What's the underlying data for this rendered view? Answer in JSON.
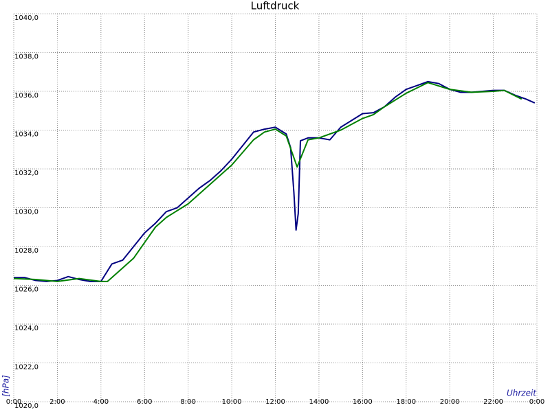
{
  "chart_data": {
    "type": "line",
    "title": "Luftdruck",
    "y_label": "[hPa]",
    "x_label": "Uhrzeit",
    "xlim": [
      0,
      24
    ],
    "ylim": [
      1020,
      1040
    ],
    "xticks": [
      {
        "value": 0,
        "label": "0:00"
      },
      {
        "value": 2,
        "label": "2:00"
      },
      {
        "value": 4,
        "label": "4:00"
      },
      {
        "value": 6,
        "label": "6:00"
      },
      {
        "value": 8,
        "label": "8:00"
      },
      {
        "value": 10,
        "label": "10:00"
      },
      {
        "value": 12,
        "label": "12:00"
      },
      {
        "value": 14,
        "label": "14:00"
      },
      {
        "value": 16,
        "label": "16:00"
      },
      {
        "value": 18,
        "label": "18:00"
      },
      {
        "value": 20,
        "label": "20:00"
      },
      {
        "value": 22,
        "label": "22:00"
      },
      {
        "value": 24,
        "label": "0:00"
      }
    ],
    "yticks": [
      {
        "value": 1020,
        "label": "1020,0"
      },
      {
        "value": 1022,
        "label": "1022,0"
      },
      {
        "value": 1024,
        "label": "1024,0"
      },
      {
        "value": 1026,
        "label": "1026,0"
      },
      {
        "value": 1028,
        "label": "1028,0"
      },
      {
        "value": 1030,
        "label": "1030,0"
      },
      {
        "value": 1032,
        "label": "1032,0"
      },
      {
        "value": 1034,
        "label": "1034,0"
      },
      {
        "value": 1036,
        "label": "1036,0"
      },
      {
        "value": 1038,
        "label": "1038,0"
      },
      {
        "value": 1040,
        "label": "1040,0"
      }
    ],
    "grid": true,
    "series": [
      {
        "color": "#000080",
        "x": [
          0,
          0.5,
          1,
          1.5,
          2,
          2.5,
          3,
          3.5,
          4,
          4.5,
          5,
          5.5,
          6,
          6.5,
          7,
          7.5,
          8,
          8.5,
          9,
          9.5,
          10,
          10.5,
          11,
          11.5,
          12,
          12.5,
          12.7,
          12.85,
          12.95,
          13.05,
          13.15,
          13.5,
          14,
          14.5,
          15,
          15.5,
          16,
          16.5,
          17,
          17.5,
          18,
          18.5,
          19,
          19.5,
          20,
          20.5,
          21,
          21.5,
          22,
          22.5,
          23,
          23.5,
          23.9
        ],
        "values": [
          1026.4,
          1026.4,
          1026.25,
          1026.2,
          1026.25,
          1026.45,
          1026.3,
          1026.2,
          1026.2,
          1027.1,
          1027.3,
          1028.0,
          1028.7,
          1029.2,
          1029.8,
          1030.0,
          1030.5,
          1031.0,
          1031.4,
          1031.9,
          1032.5,
          1033.2,
          1033.9,
          1034.05,
          1034.15,
          1033.8,
          1033.1,
          1030.8,
          1028.85,
          1029.7,
          1033.45,
          1033.6,
          1033.6,
          1033.5,
          1034.15,
          1034.5,
          1034.85,
          1034.9,
          1035.2,
          1035.7,
          1036.1,
          1036.3,
          1036.5,
          1036.4,
          1036.1,
          1035.95,
          1035.95,
          1036.0,
          1036.05,
          1036.05,
          1035.8,
          1035.6,
          1035.4
        ]
      },
      {
        "color": "#008000",
        "x": [
          0,
          1,
          2,
          3,
          4,
          4.3,
          5,
          5.5,
          6,
          6.5,
          7,
          8,
          9,
          10,
          11,
          11.5,
          12,
          12.5,
          13,
          13.5,
          14,
          15,
          16,
          16.5,
          17,
          18,
          19,
          20,
          21,
          22,
          22.5,
          23.3
        ],
        "values": [
          1026.35,
          1026.3,
          1026.2,
          1026.35,
          1026.2,
          1026.2,
          1026.9,
          1027.4,
          1028.2,
          1029.0,
          1029.5,
          1030.2,
          1031.2,
          1032.2,
          1033.5,
          1033.9,
          1034.05,
          1033.7,
          1032.1,
          1033.5,
          1033.6,
          1034.0,
          1034.6,
          1034.8,
          1035.2,
          1035.9,
          1036.45,
          1036.1,
          1035.95,
          1036.0,
          1036.05,
          1035.6
        ]
      }
    ]
  }
}
